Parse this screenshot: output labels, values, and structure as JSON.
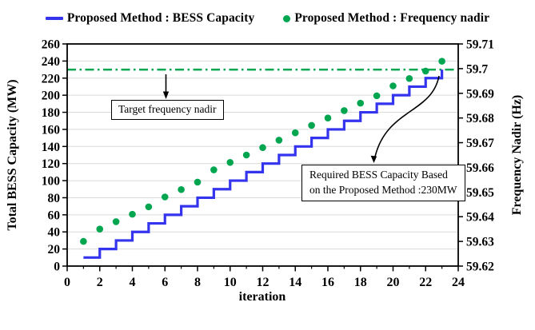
{
  "legend": {
    "items": [
      {
        "label": "Proposed Method : BESS Capacity",
        "marker": "line",
        "color": "#3434ee"
      },
      {
        "label": "Proposed Method : Frequency nadir",
        "marker": "dot",
        "color": "#00a550"
      }
    ]
  },
  "annotations": {
    "target_text": "Target frequency nadir",
    "required_line1": "Required BESS Capacity Based",
    "required_line2": "on the Proposed Method :230MW"
  },
  "colors": {
    "bess_line": "#3434ee",
    "nadir_dot": "#00a550",
    "target_line": "#00a550",
    "gridline": "#d9d9d9",
    "axis": "#000000"
  },
  "chart_data": {
    "type": "line",
    "xlabel": "iteration",
    "ylabel_left": "Total BESS Capacity (MW)",
    "ylabel_right": "Frequency Nadir (Hz)",
    "xlim": [
      0,
      24
    ],
    "ylim_left": [
      0,
      260
    ],
    "ylim_right": [
      59.62,
      59.71
    ],
    "grid": "horizontal",
    "legend_position": "top-center",
    "x_major_ticks": [
      0,
      2,
      4,
      6,
      8,
      10,
      12,
      14,
      16,
      18,
      20,
      22,
      24
    ],
    "x_tick_labels": [
      "0",
      "2",
      "4",
      "6",
      "8",
      "10",
      "12",
      "14",
      "16",
      "18",
      "20",
      "22",
      "24"
    ],
    "x_minor_ticks": [
      1,
      3,
      5,
      7,
      9,
      11,
      13,
      15,
      17,
      19,
      21,
      23
    ],
    "left_ticks": [
      0,
      20,
      40,
      60,
      80,
      100,
      120,
      140,
      160,
      180,
      200,
      220,
      240,
      260
    ],
    "left_tick_labels": [
      "0",
      "20",
      "40",
      "60",
      "80",
      "100",
      "120",
      "140",
      "160",
      "180",
      "200",
      "220",
      "240",
      "260"
    ],
    "right_ticks": [
      59.62,
      59.63,
      59.64,
      59.65,
      59.66,
      59.67,
      59.68,
      59.69,
      59.7,
      59.71
    ],
    "right_tick_labels": [
      "59.62",
      "59.63",
      "59.64",
      "59.65",
      "59.66",
      "59.67",
      "59.68",
      "59.69",
      "59.7",
      "59.71"
    ],
    "x": [
      1,
      2,
      3,
      4,
      5,
      6,
      7,
      8,
      9,
      10,
      11,
      12,
      13,
      14,
      15,
      16,
      17,
      18,
      19,
      20,
      21,
      22,
      23
    ],
    "series": [
      {
        "name": "Proposed Method : BESS Capacity",
        "axis": "left",
        "style": "step",
        "color": "#3434ee",
        "values": [
          10,
          20,
          30,
          40,
          50,
          60,
          70,
          80,
          90,
          100,
          110,
          120,
          130,
          140,
          150,
          160,
          170,
          180,
          190,
          200,
          210,
          220,
          230
        ]
      },
      {
        "name": "Proposed Method : Frequency nadir",
        "axis": "right",
        "style": "dots",
        "color": "#00a550",
        "values": [
          59.63,
          59.635,
          59.638,
          59.641,
          59.644,
          59.648,
          59.651,
          59.654,
          59.659,
          59.662,
          59.665,
          59.668,
          59.671,
          59.674,
          59.677,
          59.68,
          59.683,
          59.686,
          59.689,
          59.693,
          59.696,
          59.699,
          59.703
        ]
      }
    ],
    "target_line": {
      "label": "Target frequency nadir",
      "value_hz": 59.6996,
      "value_mw_equivalent": 230,
      "style": "dash-dot",
      "color": "#00a550"
    },
    "result": {
      "required_bess_capacity_mw": 230,
      "reached_at_iteration": 23
    }
  }
}
